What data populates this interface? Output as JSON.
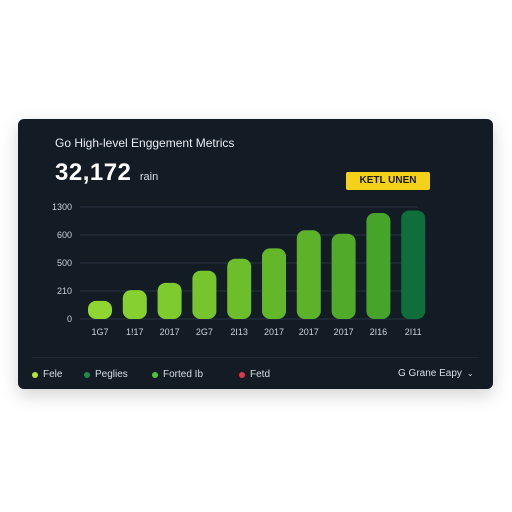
{
  "card": {
    "title": "Go High-level Enggement Metrics",
    "metric_value": "32,172",
    "metric_unit": "rain",
    "badge": "KETL UNEN"
  },
  "legend": [
    {
      "label": "Fele",
      "color": "#b7e23a"
    },
    {
      "label": "Peglies",
      "color": "#1f8a4c"
    },
    {
      "label": "Forted Ib",
      "color": "#4cc43a"
    },
    {
      "label": "Fetd",
      "color": "#e0354a"
    }
  ],
  "dropdown": {
    "label": "G Grane Eapy",
    "icon": "chevron-down-icon"
  },
  "chart_data": {
    "type": "bar",
    "categories": [
      "1G7",
      "1!17",
      "2017",
      "2G7",
      "2I13",
      "2017",
      "2017",
      "2017",
      "2I16",
      "2I11"
    ],
    "values": [
      210,
      335,
      420,
      560,
      700,
      820,
      1030,
      990,
      1230,
      1260
    ],
    "y_ticks": [
      "0",
      "210",
      "500",
      "600",
      "1300"
    ],
    "ylim": [
      0,
      1300
    ],
    "grid": true,
    "colors": [
      "#8fd632",
      "#86d130",
      "#7ecb2e",
      "#76c52c",
      "#6cbe2b",
      "#63b82a",
      "#5cb329",
      "#52ab28",
      "#47a42a",
      "#0e6f3a"
    ]
  }
}
